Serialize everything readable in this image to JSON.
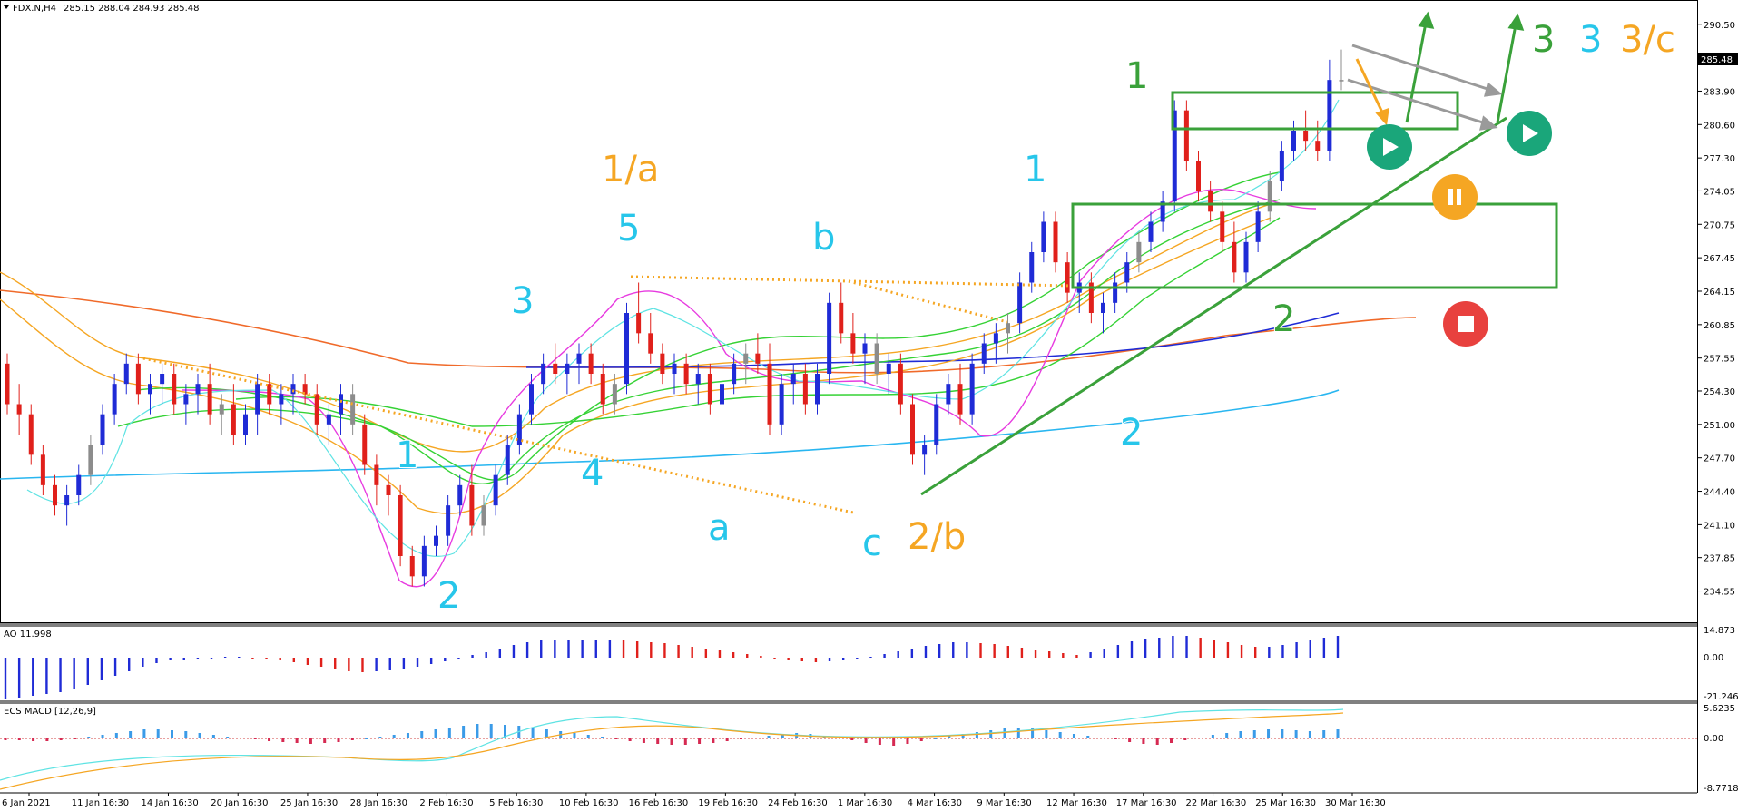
{
  "header": {
    "symbol": "FDX.N,H4",
    "ohlc": "285.15 288.04 284.93 285.48"
  },
  "price_marker": "285.48",
  "chart_data": {
    "type": "candlestick",
    "price_axis": [
      "290.50",
      "287.20",
      "283.90",
      "280.60",
      "277.30",
      "274.05",
      "270.75",
      "267.45",
      "264.15",
      "260.85",
      "257.55",
      "254.30",
      "251.00",
      "247.70",
      "244.40",
      "241.10",
      "237.85",
      "234.55"
    ],
    "date_axis": [
      "6 Jan 2021",
      "11 Jan 16:30",
      "14 Jan 16:30",
      "20 Jan 16:30",
      "25 Jan 16:30",
      "28 Jan 16:30",
      "2 Feb 16:30",
      "5 Feb 16:30",
      "10 Feb 16:30",
      "16 Feb 16:30",
      "19 Feb 16:30",
      "24 Feb 16:30",
      "1 Mar 16:30",
      "4 Mar 16:30",
      "9 Mar 16:30",
      "12 Mar 16:30",
      "17 Mar 16:30",
      "22 Mar 16:30",
      "25 Mar 16:30",
      "30 Mar 16:30"
    ],
    "ylim": [
      232.0,
      292.0
    ],
    "candles": [
      [
        257,
        258,
        252,
        253
      ],
      [
        253,
        255,
        250,
        252
      ],
      [
        252,
        253,
        247,
        248
      ],
      [
        248,
        249,
        244,
        245
      ],
      [
        245,
        246,
        242,
        243
      ],
      [
        243,
        245,
        241,
        244
      ],
      [
        244,
        247,
        243,
        246
      ],
      [
        246,
        250,
        245,
        249
      ],
      [
        249,
        253,
        248,
        252
      ],
      [
        252,
        256,
        251,
        255
      ],
      [
        255,
        258,
        254,
        257
      ],
      [
        257,
        258,
        253,
        254
      ],
      [
        254,
        256,
        252,
        255
      ],
      [
        255,
        257,
        253,
        256
      ],
      [
        256,
        257,
        252,
        253
      ],
      [
        253,
        255,
        251,
        254
      ],
      [
        254,
        256,
        252,
        255
      ],
      [
        255,
        257,
        251,
        252
      ],
      [
        252,
        254,
        250,
        253
      ],
      [
        253,
        255,
        249,
        250
      ],
      [
        250,
        253,
        249,
        252
      ],
      [
        252,
        256,
        250,
        255
      ],
      [
        255,
        256,
        252,
        253
      ],
      [
        253,
        255,
        251,
        254
      ],
      [
        254,
        256,
        252,
        255
      ],
      [
        255,
        256,
        253,
        254
      ],
      [
        254,
        255,
        250,
        251
      ],
      [
        251,
        253,
        249,
        252
      ],
      [
        252,
        255,
        250,
        254
      ],
      [
        254,
        255,
        250,
        251
      ],
      [
        251,
        252,
        246,
        247
      ],
      [
        247,
        248,
        243,
        245
      ],
      [
        245,
        246,
        242,
        244
      ],
      [
        244,
        245,
        237,
        238
      ],
      [
        238,
        239,
        235,
        236
      ],
      [
        236,
        240,
        235,
        239
      ],
      [
        239,
        241,
        238,
        240
      ],
      [
        240,
        244,
        239,
        243
      ],
      [
        243,
        246,
        242,
        245
      ],
      [
        245,
        247,
        240,
        241
      ],
      [
        241,
        244,
        240,
        243
      ],
      [
        243,
        247,
        242,
        246
      ],
      [
        246,
        250,
        245,
        249
      ],
      [
        249,
        253,
        248,
        252
      ],
      [
        252,
        256,
        251,
        255
      ],
      [
        255,
        258,
        254,
        257
      ],
      [
        257,
        259,
        255,
        256
      ],
      [
        256,
        258,
        254,
        257
      ],
      [
        257,
        259,
        255,
        258
      ],
      [
        258,
        259,
        255,
        256
      ],
      [
        256,
        257,
        252,
        253
      ],
      [
        253,
        256,
        252,
        255
      ],
      [
        255,
        263,
        254,
        262
      ],
      [
        262,
        265,
        259,
        260
      ],
      [
        260,
        262,
        257,
        258
      ],
      [
        258,
        259,
        255,
        256
      ],
      [
        256,
        258,
        254,
        257
      ],
      [
        257,
        258,
        254,
        255
      ],
      [
        255,
        257,
        253,
        256
      ],
      [
        256,
        257,
        252,
        253
      ],
      [
        253,
        256,
        251,
        255
      ],
      [
        255,
        258,
        254,
        257
      ],
      [
        257,
        259,
        255,
        258
      ],
      [
        258,
        260,
        256,
        257
      ],
      [
        257,
        259,
        250,
        251
      ],
      [
        251,
        256,
        250,
        255
      ],
      [
        255,
        257,
        253,
        256
      ],
      [
        256,
        257,
        252,
        253
      ],
      [
        253,
        257,
        252,
        256
      ],
      [
        256,
        264,
        255,
        263
      ],
      [
        263,
        265,
        259,
        260
      ],
      [
        260,
        262,
        257,
        258
      ],
      [
        258,
        260,
        255,
        259
      ],
      [
        259,
        260,
        255,
        256
      ],
      [
        256,
        258,
        254,
        257
      ],
      [
        257,
        258,
        252,
        253
      ],
      [
        253,
        254,
        247,
        248
      ],
      [
        248,
        250,
        246,
        249
      ],
      [
        249,
        254,
        248,
        253
      ],
      [
        253,
        256,
        252,
        255
      ],
      [
        255,
        257,
        251,
        252
      ],
      [
        252,
        258,
        251,
        257
      ],
      [
        257,
        260,
        256,
        259
      ],
      [
        259,
        261,
        257,
        260
      ],
      [
        260,
        262,
        258,
        261
      ],
      [
        261,
        266,
        260,
        265
      ],
      [
        265,
        269,
        264,
        268
      ],
      [
        268,
        272,
        267,
        271
      ],
      [
        271,
        272,
        266,
        267
      ],
      [
        267,
        268,
        263,
        264
      ],
      [
        264,
        266,
        262,
        265
      ],
      [
        265,
        266,
        261,
        262
      ],
      [
        262,
        264,
        260,
        263
      ],
      [
        263,
        266,
        262,
        265
      ],
      [
        265,
        268,
        264,
        267
      ],
      [
        267,
        270,
        266,
        269
      ],
      [
        269,
        272,
        268,
        271
      ],
      [
        271,
        274,
        270,
        273
      ],
      [
        273,
        283,
        272,
        282
      ],
      [
        282,
        283,
        276,
        277
      ],
      [
        277,
        278,
        273,
        274
      ],
      [
        274,
        275,
        271,
        272
      ],
      [
        272,
        273,
        268,
        269
      ],
      [
        269,
        271,
        265,
        266
      ],
      [
        266,
        270,
        265,
        269
      ],
      [
        269,
        273,
        268,
        272
      ],
      [
        272,
        276,
        271,
        275
      ],
      [
        275,
        279,
        274,
        278
      ],
      [
        278,
        281,
        277,
        280
      ],
      [
        280,
        282,
        278,
        279
      ],
      [
        279,
        281,
        277,
        278
      ],
      [
        278,
        287,
        277,
        285
      ],
      [
        285,
        288,
        284,
        285
      ]
    ],
    "indicators": {
      "ao": {
        "label": "AO 11.998",
        "axis": [
          "14.873",
          "0.00",
          "-21.246"
        ]
      },
      "macd": {
        "label": "ECS MACD [12,26,9]",
        "axis": [
          "5.6235",
          "0.00",
          "-8.7718"
        ]
      }
    },
    "wave_labels": [
      {
        "text": "1/a",
        "color": "#f5a623"
      },
      {
        "text": "5",
        "color": "#27c6ea"
      },
      {
        "text": "3",
        "color": "#27c6ea"
      },
      {
        "text": "4",
        "color": "#27c6ea"
      },
      {
        "text": "1",
        "color": "#27c6ea"
      },
      {
        "text": "2",
        "color": "#27c6ea"
      },
      {
        "text": "a",
        "color": "#27c6ea"
      },
      {
        "text": "b",
        "color": "#27c6ea"
      },
      {
        "text": "c",
        "color": "#27c6ea"
      },
      {
        "text": "2/b",
        "color": "#f5a623"
      },
      {
        "text": "1",
        "color": "#27c6ea"
      },
      {
        "text": "2",
        "color": "#27c6ea"
      },
      {
        "text": "1",
        "color": "#3aa13a"
      },
      {
        "text": "2",
        "color": "#3aa13a"
      },
      {
        "text": "3",
        "color": "#3aa13a"
      },
      {
        "text": "3",
        "color": "#27c6ea"
      },
      {
        "text": "3/c",
        "color": "#f5a623"
      }
    ]
  },
  "colors": {
    "bull": "#1f2bd6",
    "bear": "#e0201b",
    "neutral": "#8c8c8c",
    "trend_green": "#3aa13a",
    "orange_dotted": "#f5a623",
    "play_btn": "#1aa67a",
    "pause_btn": "#f5a623",
    "stop_btn": "#e8413e"
  },
  "icons": {
    "play": "play-icon",
    "pause": "pause-icon",
    "stop": "stop-icon"
  }
}
